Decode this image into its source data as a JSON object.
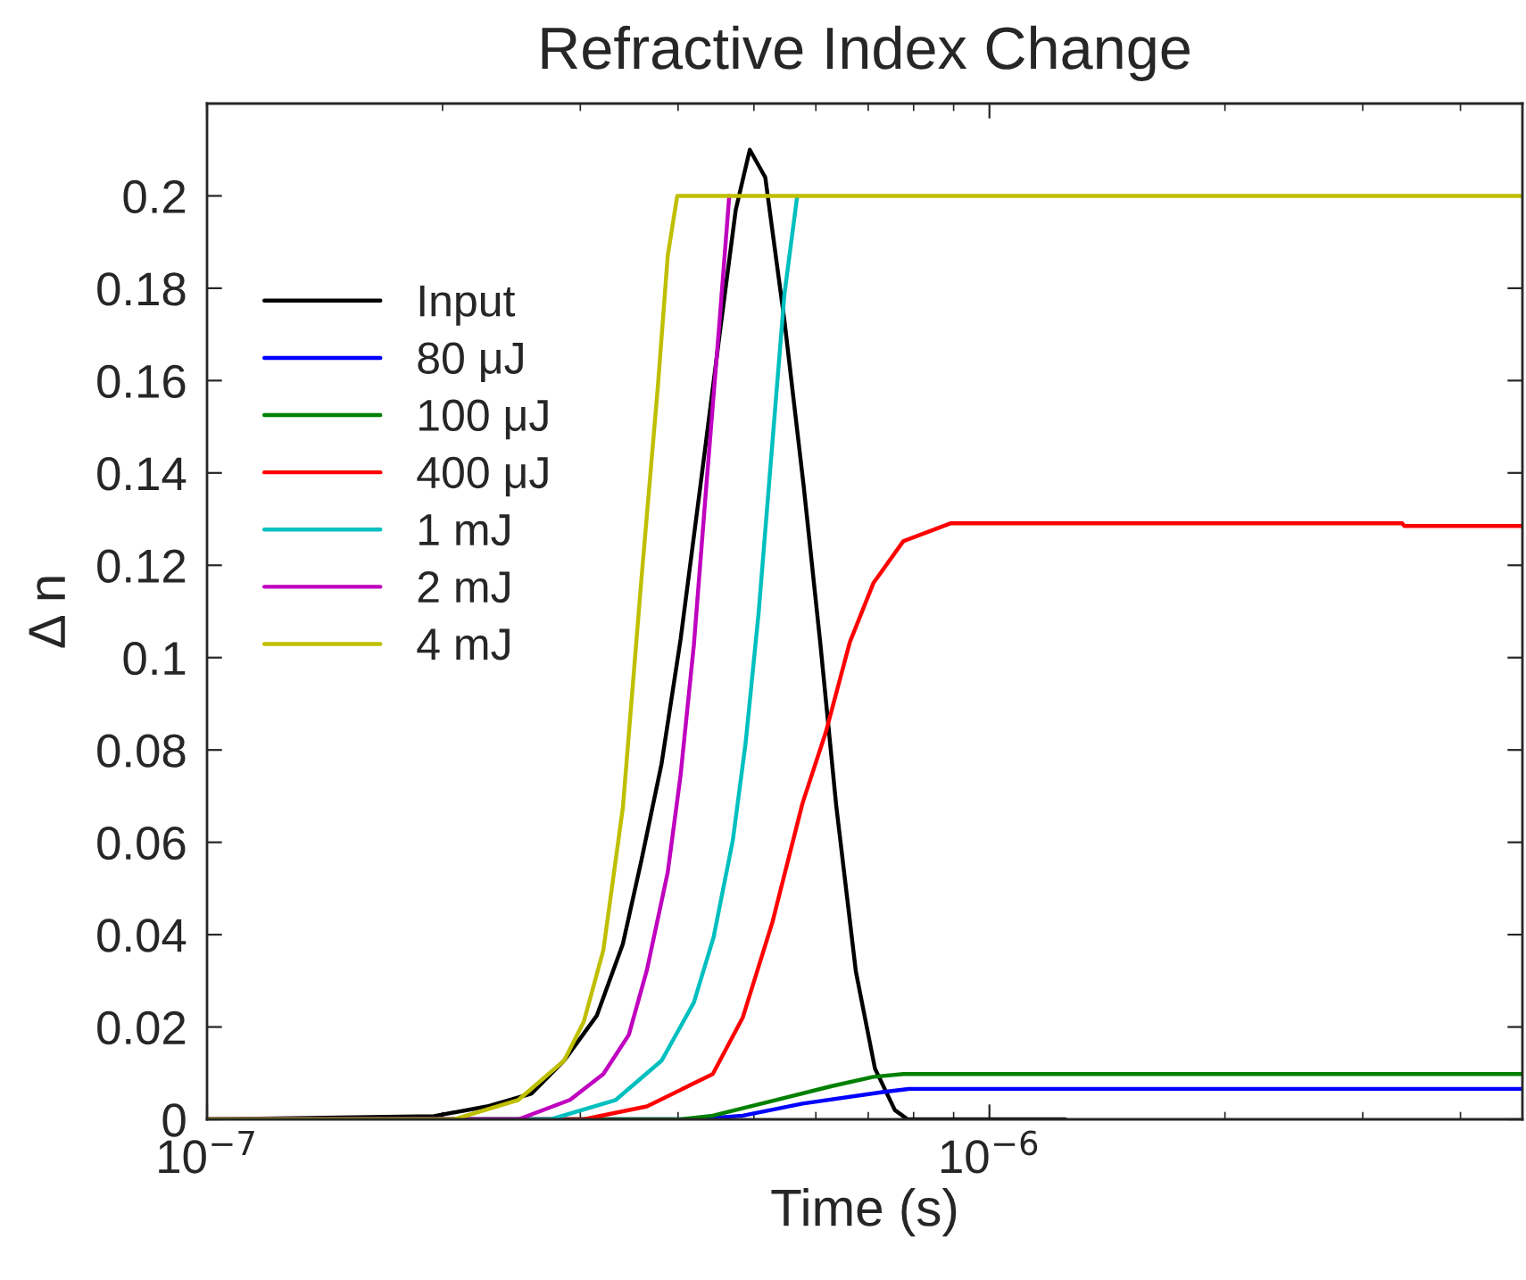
{
  "chart_data": {
    "type": "line",
    "title": "Refractive Index Change",
    "xlabel": "Time (s)",
    "ylabel": "Δ n",
    "log": "x",
    "xlim": [
      1e-07,
      4.8e-06
    ],
    "xticks": [
      {
        "value": 1e-07,
        "label": "10$^{−7}$"
      },
      {
        "value": 1e-06,
        "label": "10$^{−6}$"
      }
    ],
    "ylim": [
      0,
      0.22
    ],
    "yticks": [
      0,
      0.02,
      0.04,
      0.06,
      0.08,
      0.1,
      0.12,
      0.14,
      0.16,
      0.18,
      0.2
    ],
    "grid": false,
    "legend": "top left",
    "marker": "none",
    "line_style": "solid",
    "series": [
      {
        "name": "Input",
        "color": "#000000",
        "x": [
          1e-07,
          1.95e-07,
          2.28e-07,
          2.6e-07,
          2.86e-07,
          3.15e-07,
          3.4e-07,
          3.59e-07,
          3.81e-07,
          4.03e-07,
          4.27e-07,
          4.52e-07,
          4.74e-07,
          4.94e-07,
          5.17e-07,
          5.47e-07,
          5.79e-07,
          6.08e-07,
          6.37e-07,
          6.75e-07,
          7.14e-07,
          7.57e-07,
          7.86e-07,
          1.25e-06
        ],
        "values": [
          0,
          0.0007,
          0.0028,
          0.0056,
          0.0127,
          0.0225,
          0.038,
          0.056,
          0.077,
          0.104,
          0.137,
          0.17,
          0.197,
          0.21,
          0.204,
          0.173,
          0.137,
          0.103,
          0.068,
          0.032,
          0.011,
          0.002,
          0,
          0
        ]
      },
      {
        "name": "80 μJ",
        "color": "#0000ff",
        "x": [
          1e-07,
          4.2e-07,
          4.84e-07,
          5.77e-07,
          7.3e-07,
          7.9e-07,
          4.8e-06
        ],
        "values": [
          0,
          0,
          0.0008,
          0.0034,
          0.0059,
          0.0066,
          0.0066
        ]
      },
      {
        "name": "100 μJ",
        "color": "#008000",
        "x": [
          1e-07,
          4.03e-07,
          4.43e-07,
          5.28e-07,
          6.29e-07,
          7.11e-07,
          7.76e-07,
          4.8e-06
        ],
        "values": [
          0,
          0,
          0.0008,
          0.004,
          0.0072,
          0.0092,
          0.0098,
          0.0098
        ]
      },
      {
        "name": "400 μJ",
        "color": "#ff0000",
        "x": [
          1e-07,
          3.03e-07,
          3.65e-07,
          4.43e-07,
          4.84e-07,
          5.28e-07,
          5.77e-07,
          6.18e-07,
          6.63e-07,
          7.11e-07,
          7.76e-07,
          8.93e-07,
          3.37e-06,
          3.39e-06,
          4.8e-06
        ],
        "values": [
          0,
          0,
          0.0028,
          0.0098,
          0.0221,
          0.0427,
          0.0685,
          0.0839,
          0.1033,
          0.1162,
          0.1252,
          0.1291,
          0.1291,
          0.1285,
          0.1285
        ]
      },
      {
        "name": "1 mJ",
        "color": "#00bfbf",
        "x": [
          1e-07,
          2.75e-07,
          3.33e-07,
          3.81e-07,
          4.19e-07,
          4.44e-07,
          4.7e-07,
          4.88e-07,
          5.07e-07,
          5.27e-07,
          5.47e-07,
          5.68e-07
        ],
        "values": [
          0,
          0,
          0.0042,
          0.0127,
          0.0253,
          0.0394,
          0.0605,
          0.0816,
          0.1097,
          0.1449,
          0.1787,
          0.2
        ]
      },
      {
        "name": "2 mJ",
        "color": "#bf00bf",
        "x": [
          1e-07,
          2.5e-07,
          2.91e-07,
          3.21e-07,
          3.46e-07,
          3.65e-07,
          3.88e-07,
          4.03e-07,
          4.19e-07,
          4.35e-07,
          4.52e-07,
          4.65e-07
        ],
        "values": [
          0,
          0,
          0.0042,
          0.0098,
          0.0183,
          0.0324,
          0.0535,
          0.0746,
          0.1027,
          0.1379,
          0.173,
          0.2
        ]
      },
      {
        "name": "4 mJ",
        "color": "#bfbf00",
        "x": [
          1e-07,
          2.07e-07,
          2.5e-07,
          2.86e-07,
          3.03e-07,
          3.21e-07,
          3.4e-07,
          3.59e-07,
          3.77e-07,
          3.88e-07,
          3.99e-07,
          4.8e-06
        ],
        "values": [
          0,
          0,
          0.0042,
          0.0127,
          0.0211,
          0.0366,
          0.0675,
          0.1168,
          0.159,
          0.187,
          0.2,
          0.2
        ]
      }
    ]
  }
}
